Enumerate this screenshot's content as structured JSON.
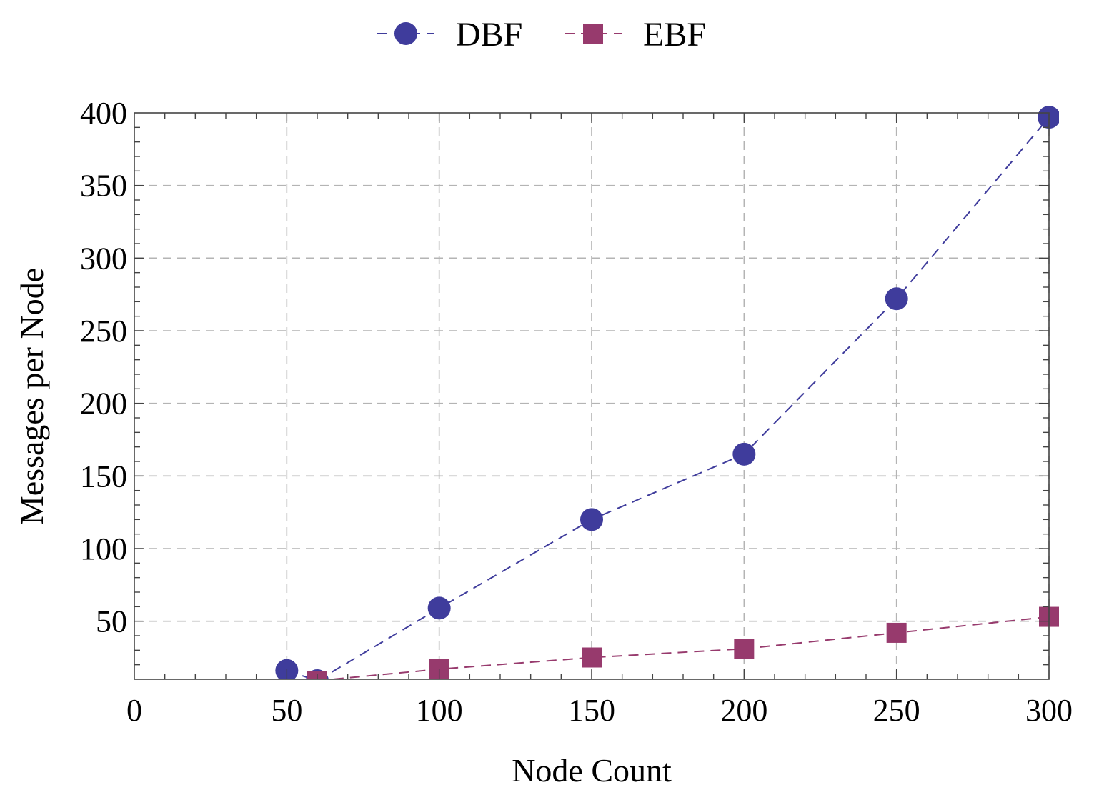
{
  "chart_data": {
    "type": "line",
    "xlabel": "Node Count",
    "ylabel": "Messages per Node",
    "xlim": [
      0,
      300
    ],
    "ylim": [
      10,
      400
    ],
    "xticks": [
      0,
      50,
      100,
      150,
      200,
      250,
      300
    ],
    "yticks": [
      50,
      100,
      150,
      200,
      250,
      300,
      350,
      400
    ],
    "grid": true,
    "legend_position": "top-center",
    "series": [
      {
        "name": "DBF",
        "marker": "circle",
        "line_style": "dashed",
        "color": "#3f3c9c",
        "x": [
          50,
          60,
          100,
          150,
          200,
          250,
          300
        ],
        "y": [
          16,
          9,
          59,
          120,
          165,
          272,
          397
        ]
      },
      {
        "name": "EBF",
        "marker": "square",
        "line_style": "dashed",
        "color": "#973a6d",
        "x": [
          60,
          100,
          150,
          200,
          250,
          300
        ],
        "y": [
          9,
          17,
          25,
          31,
          42,
          53
        ]
      }
    ]
  }
}
